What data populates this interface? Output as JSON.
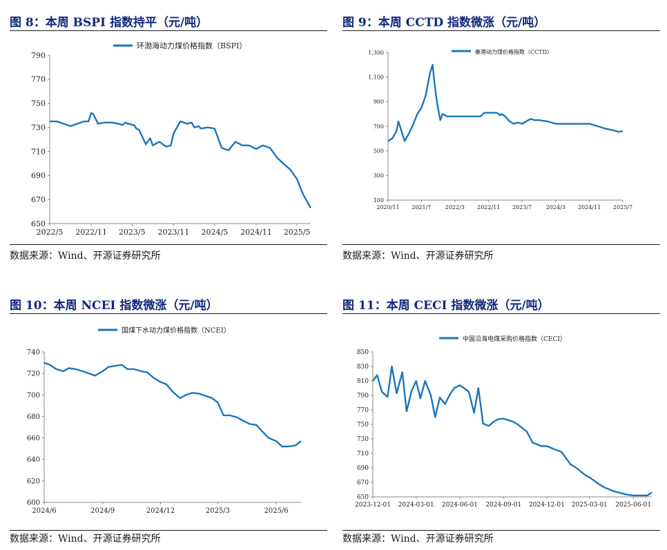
{
  "line_color": "#1a75bb",
  "title_color": "#10287a",
  "panels": [
    {
      "title": "图 8：本周 BSPI 指数持平（元/吨）",
      "source": "数据来源：Wind、开源证券研究所"
    },
    {
      "title": "图 9：本周 CCTD 指数微涨（元/吨）",
      "source": "数据来源：Wind、开源证券研究所"
    },
    {
      "title": "图 10：本周 NCEI 指数微涨（元/吨）",
      "source": "数据来源：Wind、开源证券研究所"
    },
    {
      "title": "图 11：本周 CECI 指数微涨（元/吨）",
      "source": "数据来源：Wind、开源证券研究所"
    }
  ],
  "chart_data": [
    {
      "type": "line",
      "series": [
        {
          "name": "环渤海动力煤价格指数（BSPI）",
          "x": [
            "2022-05-01",
            "2022-06-01",
            "2022-07-01",
            "2022-08-01",
            "2022-09-01",
            "2022-10-01",
            "2022-10-20",
            "2022-11-01",
            "2022-11-10",
            "2022-12-01",
            "2023-01-01",
            "2023-02-01",
            "2023-03-01",
            "2023-03-20",
            "2023-04-01",
            "2023-04-10",
            "2023-04-20",
            "2023-05-01",
            "2023-05-10",
            "2023-05-20",
            "2023-06-01",
            "2023-07-01",
            "2023-07-20",
            "2023-08-01",
            "2023-08-20",
            "2023-09-01",
            "2023-09-20",
            "2023-10-01",
            "2023-10-20",
            "2023-11-01",
            "2023-12-01",
            "2024-01-01",
            "2024-01-20",
            "2024-02-01",
            "2024-02-20",
            "2024-03-01",
            "2024-04-01",
            "2024-05-01",
            "2024-06-01",
            "2024-07-01",
            "2024-08-01",
            "2024-09-01",
            "2024-10-01",
            "2024-11-01",
            "2024-12-01",
            "2025-01-01",
            "2025-02-01",
            "2025-03-01",
            "2025-04-01",
            "2025-05-01",
            "2025-05-20",
            "2025-06-01",
            "2025-07-01"
          ],
          "y": [
            735,
            735,
            733,
            731,
            733,
            735,
            735,
            742,
            741,
            733,
            734,
            734,
            733,
            732,
            734,
            733,
            733,
            732,
            732,
            729,
            728,
            716,
            721,
            715,
            717,
            718,
            715,
            714,
            715,
            725,
            735,
            733,
            734,
            730,
            731,
            729,
            730,
            729,
            713,
            711,
            718,
            715,
            715,
            712,
            715,
            713,
            705,
            700,
            695,
            687,
            678,
            673,
            663
          ]
        }
      ],
      "xticks": [
        "2022/5",
        "2022/11",
        "2023/5",
        "2023/11",
        "2024/5",
        "2024/11",
        "2025/5"
      ],
      "ylim": [
        650,
        790
      ],
      "yticks": [
        650,
        670,
        690,
        710,
        730,
        750,
        770,
        790
      ]
    },
    {
      "type": "line",
      "series": [
        {
          "name": "秦港动力煤价格指数（CCTD）",
          "x": [
            "2020-11-01",
            "2020-12-01",
            "2021-01-01",
            "2021-01-15",
            "2021-02-01",
            "2021-03-01",
            "2021-04-01",
            "2021-05-01",
            "2021-06-01",
            "2021-07-01",
            "2021-08-01",
            "2021-09-01",
            "2021-09-20",
            "2021-10-01",
            "2021-10-15",
            "2021-11-01",
            "2021-11-15",
            "2021-12-01",
            "2021-12-20",
            "2022-01-01",
            "2022-03-01",
            "2022-06-01",
            "2022-09-01",
            "2022-10-01",
            "2022-12-01",
            "2023-01-01",
            "2023-01-20",
            "2023-02-01",
            "2023-03-01",
            "2023-04-01",
            "2023-05-01",
            "2023-06-01",
            "2023-07-01",
            "2023-08-01",
            "2023-09-01",
            "2023-10-01",
            "2023-11-01",
            "2024-01-01",
            "2024-03-01",
            "2024-05-01",
            "2024-07-01",
            "2024-09-01",
            "2024-11-01",
            "2025-01-01",
            "2025-03-01",
            "2025-05-01",
            "2025-06-01",
            "2025-07-01"
          ],
          "y": [
            580,
            600,
            660,
            740,
            680,
            580,
            640,
            710,
            800,
            850,
            950,
            1130,
            1200,
            1080,
            950,
            830,
            750,
            800,
            790,
            780,
            780,
            780,
            780,
            810,
            810,
            810,
            790,
            800,
            780,
            740,
            720,
            730,
            720,
            740,
            760,
            750,
            750,
            740,
            720,
            720,
            720,
            720,
            720,
            700,
            680,
            665,
            655,
            660
          ]
        }
      ],
      "xticks": [
        "2020/11",
        "2021/7",
        "2022/3",
        "2022/11",
        "2023/7",
        "2024/3",
        "2024/11",
        "2025/7"
      ],
      "ylim": [
        100,
        1300
      ],
      "yticks": [
        100,
        300,
        500,
        700,
        900,
        1100,
        1300
      ],
      "ytick_labels": [
        "100",
        "300",
        "500",
        "700",
        "900",
        "1,100",
        "1,300"
      ]
    },
    {
      "type": "line",
      "series": [
        {
          "name": "国煤下水动力煤价格指数（NCEI）",
          "x": [
            "2024-06-01",
            "2024-06-10",
            "2024-06-20",
            "2024-07-01",
            "2024-07-10",
            "2024-07-20",
            "2024-08-01",
            "2024-08-10",
            "2024-08-20",
            "2024-09-01",
            "2024-09-10",
            "2024-09-20",
            "2024-10-01",
            "2024-10-10",
            "2024-10-20",
            "2024-11-01",
            "2024-11-10",
            "2024-11-20",
            "2024-12-01",
            "2024-12-10",
            "2024-12-20",
            "2025-01-01",
            "2025-01-10",
            "2025-01-20",
            "2025-02-01",
            "2025-02-10",
            "2025-02-20",
            "2025-03-01",
            "2025-03-10",
            "2025-03-20",
            "2025-04-01",
            "2025-04-10",
            "2025-04-20",
            "2025-05-01",
            "2025-05-10",
            "2025-05-20",
            "2025-06-01",
            "2025-06-10",
            "2025-06-20",
            "2025-07-01",
            "2025-07-10"
          ],
          "y": [
            730,
            728,
            724,
            722,
            725,
            724,
            722,
            720,
            718,
            722,
            726,
            727,
            728,
            724,
            724,
            722,
            721,
            716,
            712,
            710,
            703,
            697,
            700,
            702,
            701,
            699,
            697,
            693,
            681,
            681,
            679,
            676,
            673,
            672,
            666,
            660,
            657,
            652,
            652,
            653,
            657
          ]
        }
      ],
      "xticks": [
        "2024/6",
        "2024/9",
        "2024/12",
        "2025/3",
        "2025/6"
      ],
      "ylim": [
        600,
        740
      ],
      "yticks": [
        600,
        620,
        640,
        660,
        680,
        700,
        720,
        740
      ]
    },
    {
      "type": "line",
      "series": [
        {
          "name": "中国沿海电煤采购价格指数（CECI）",
          "x": [
            "2023-12-01",
            "2023-12-10",
            "2023-12-20",
            "2024-01-01",
            "2024-01-10",
            "2024-01-20",
            "2024-02-01",
            "2024-02-10",
            "2024-02-20",
            "2024-03-01",
            "2024-03-10",
            "2024-03-20",
            "2024-04-01",
            "2024-04-10",
            "2024-04-20",
            "2024-05-01",
            "2024-05-10",
            "2024-05-20",
            "2024-06-01",
            "2024-06-10",
            "2024-06-20",
            "2024-07-01",
            "2024-07-10",
            "2024-07-20",
            "2024-08-01",
            "2024-08-10",
            "2024-08-20",
            "2024-09-01",
            "2024-09-20",
            "2024-10-01",
            "2024-10-20",
            "2024-11-01",
            "2024-11-20",
            "2024-12-01",
            "2024-12-20",
            "2025-01-01",
            "2025-01-20",
            "2025-02-01",
            "2025-02-20",
            "2025-03-01",
            "2025-03-20",
            "2025-04-01",
            "2025-04-20",
            "2025-05-01",
            "2025-05-20",
            "2025-06-01",
            "2025-06-20",
            "2025-07-01",
            "2025-07-10"
          ],
          "y": [
            810,
            818,
            795,
            788,
            830,
            793,
            822,
            768,
            795,
            810,
            786,
            810,
            790,
            760,
            787,
            778,
            790,
            800,
            804,
            800,
            795,
            766,
            800,
            751,
            748,
            753,
            757,
            758,
            754,
            750,
            740,
            725,
            720,
            720,
            715,
            712,
            695,
            690,
            680,
            677,
            668,
            663,
            658,
            656,
            653,
            652,
            652,
            652,
            656
          ]
        }
      ],
      "xticks": [
        "2023-12-01",
        "2024-03-01",
        "2024-06-01",
        "2024-09-01",
        "2024-12-01",
        "2025-03-01",
        "2025-06-01"
      ],
      "ylim": [
        650,
        850
      ],
      "yticks": [
        650,
        670,
        690,
        710,
        730,
        750,
        770,
        790,
        810,
        830,
        850
      ]
    }
  ]
}
